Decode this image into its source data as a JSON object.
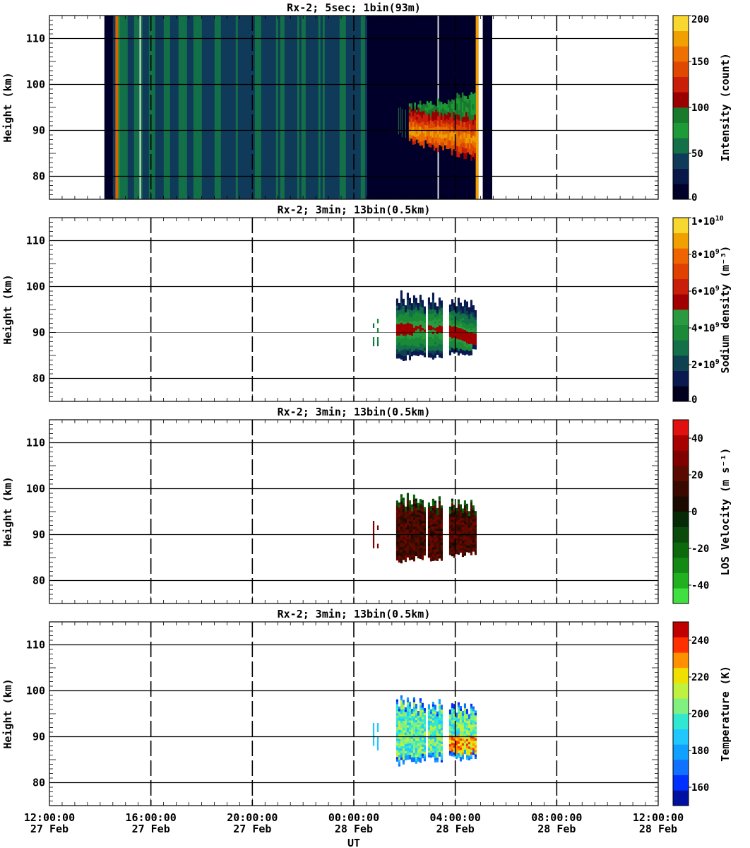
{
  "chart_data": [
    {
      "type": "heatmap",
      "title": "Rx-2;  5sec; 1bin(93m)",
      "ylabel": "Height (km)",
      "ylim": [
        75,
        115
      ],
      "yticks": [
        "80",
        "90",
        "100",
        "110"
      ],
      "colorbar": {
        "label": "Intensity (count)",
        "ticks": [
          "0",
          "50",
          "100",
          "150",
          "200"
        ],
        "range": [
          0,
          200
        ],
        "colors": [
          "#00002a",
          "#081848",
          "#0f3a5a",
          "#137048",
          "#1e9a38",
          "#1a7a2c",
          "#9a0000",
          "#c81e0a",
          "#e04800",
          "#ee7000",
          "#f0a000",
          "#f8d830"
        ]
      },
      "data_extent_ut": [
        "14:10:00",
        "05:25:00"
      ],
      "layer_extent_ut": [
        "02:10:00",
        "04:55:00"
      ],
      "layer_height_km": [
        83,
        98
      ],
      "peak_intensity_count": 200
    },
    {
      "type": "heatmap",
      "title": "Rx-2; 3min; 13bin(0.5km)",
      "ylabel": "Height (km)",
      "ylim": [
        75,
        115
      ],
      "yticks": [
        "80",
        "90",
        "100",
        "110"
      ],
      "colorbar": {
        "label": "Sodium density (m⁻³)",
        "ticks": [
          {
            "b": "0",
            "e": ""
          },
          {
            "b": "2•10",
            "e": "9"
          },
          {
            "b": "4•10",
            "e": "9"
          },
          {
            "b": "6•10",
            "e": "9"
          },
          {
            "b": "8•10",
            "e": "9"
          },
          {
            "b": "1•10",
            "e": "10"
          }
        ],
        "range": [
          0,
          10000000000
        ],
        "colors": [
          "#00001e",
          "#0a1a50",
          "#0f4050",
          "#137048",
          "#1a8a38",
          "#2a9a40",
          "#a00000",
          "#c81e0a",
          "#e04000",
          "#ee6400",
          "#f0a000",
          "#f8d830"
        ]
      },
      "data_extent_ut": [
        "00:45:00",
        "04:50:00"
      ],
      "layer_height_km": [
        83,
        99
      ],
      "peak_density_m3": 6000000000
    },
    {
      "type": "heatmap",
      "title": "Rx-2; 3min; 13bin(0.5km)",
      "ylabel": "Height (km)",
      "ylim": [
        75,
        115
      ],
      "yticks": [
        "80",
        "90",
        "100",
        "110"
      ],
      "colorbar": {
        "label": "LOS Velocity (m s⁻¹)",
        "ticks": [
          "-40",
          "-20",
          "0",
          "20",
          "40"
        ],
        "range": [
          -50,
          50
        ],
        "colors": [
          "#40e040",
          "#20b020",
          "#148a14",
          "#0c6a0c",
          "#0a4a0a",
          "#062a06",
          "#1a0a00",
          "#3a0a00",
          "#5a0a00",
          "#800000",
          "#a80000",
          "#e01010"
        ]
      },
      "data_extent_ut": [
        "00:45:00",
        "04:50:00"
      ],
      "layer_height_km": [
        83,
        99
      ]
    },
    {
      "type": "heatmap",
      "title": "Rx-2; 3min; 13bin(0.5km)",
      "ylabel": "Height (km)",
      "ylim": [
        75,
        115
      ],
      "yticks": [
        "80",
        "90",
        "100",
        "110"
      ],
      "colorbar": {
        "label": "Temperature (K)",
        "ticks": [
          "160",
          "180",
          "200",
          "220",
          "240"
        ],
        "range": [
          150,
          250
        ],
        "colors": [
          "#0010a0",
          "#0030ff",
          "#1070ff",
          "#10a0ff",
          "#20c8ff",
          "#30e8d0",
          "#80f080",
          "#c0f040",
          "#f0e000",
          "#ff9000",
          "#ff3000",
          "#c00000"
        ]
      },
      "data_extent_ut": [
        "00:45:00",
        "04:50:00"
      ],
      "layer_height_km": [
        83,
        99
      ]
    }
  ],
  "xaxis": {
    "label": "UT",
    "range_hours": [
      0,
      24
    ],
    "ticks": [
      {
        "time": "12:00:00",
        "date": "27 Feb"
      },
      {
        "time": "16:00:00",
        "date": "27 Feb"
      },
      {
        "time": "20:00:00",
        "date": "27 Feb"
      },
      {
        "time": "00:00:00",
        "date": "28 Feb"
      },
      {
        "time": "04:00:00",
        "date": "28 Feb"
      },
      {
        "time": "08:00:00",
        "date": "28 Feb"
      },
      {
        "time": "12:00:00",
        "date": "28 Feb"
      }
    ]
  }
}
